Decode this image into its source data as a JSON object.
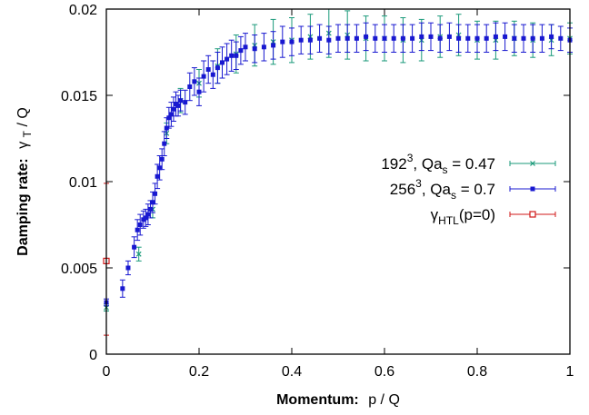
{
  "chart_data": {
    "type": "scatter",
    "title": "",
    "xlabel_bold": "Momentum:",
    "xlabel_rest": "p / Q",
    "ylabel_bold": "Damping rate:",
    "ylabel_rest": "γT / Q",
    "xlim": [
      0,
      1
    ],
    "ylim": [
      0,
      0.02
    ],
    "xticks": [
      0,
      0.2,
      0.4,
      0.6,
      0.8,
      1
    ],
    "xtick_labels": [
      "0",
      "0.2",
      "0.4",
      "0.6",
      "0.8",
      "1"
    ],
    "yticks": [
      0,
      0.005,
      0.01,
      0.015,
      0.02
    ],
    "ytick_labels": [
      "0",
      "0.005",
      "0.01",
      "0.015",
      "0.02"
    ],
    "grid": false,
    "legend_position": "center-right",
    "series": [
      {
        "name": "192³, Qa_s = 0.47",
        "legend_parts": [
          "192",
          "3",
          ", Qa",
          "s",
          " = 0.47"
        ],
        "color": "#1a9a7a",
        "marker": "x",
        "x": [
          0.0,
          0.07,
          0.1,
          0.13,
          0.16,
          0.2,
          0.24,
          0.28,
          0.32,
          0.36,
          0.4,
          0.44,
          0.48,
          0.52,
          0.56,
          0.6,
          0.64,
          0.68,
          0.72,
          0.76,
          0.8,
          0.84,
          0.88,
          0.92,
          0.96,
          1.0
        ],
        "y": [
          0.0027,
          0.0058,
          0.0084,
          0.0128,
          0.0147,
          0.0157,
          0.0167,
          0.0174,
          0.0179,
          0.0181,
          0.0182,
          0.0184,
          0.0186,
          0.0185,
          0.0183,
          0.0183,
          0.0182,
          0.0182,
          0.0184,
          0.0185,
          0.0182,
          0.0182,
          0.0183,
          0.0182,
          0.0182,
          0.0183
        ],
        "err": [
          0.0002,
          0.0004,
          0.0005,
          0.0006,
          0.0007,
          0.0008,
          0.001,
          0.0011,
          0.0012,
          0.0013,
          0.0013,
          0.0013,
          0.0014,
          0.0014,
          0.0013,
          0.0013,
          0.0013,
          0.0012,
          0.0012,
          0.0012,
          0.0011,
          0.0011,
          0.001,
          0.001,
          0.0009,
          0.0009
        ]
      },
      {
        "name": "256³, Qa_s = 0.7",
        "legend_parts": [
          "256",
          "3",
          ", Qa",
          "s",
          " = 0.7"
        ],
        "color": "#1818d0",
        "marker": "square-filled",
        "x": [
          0.0,
          0.035,
          0.047,
          0.06,
          0.067,
          0.073,
          0.08,
          0.085,
          0.09,
          0.095,
          0.1,
          0.105,
          0.11,
          0.115,
          0.12,
          0.125,
          0.13,
          0.135,
          0.14,
          0.145,
          0.15,
          0.155,
          0.16,
          0.17,
          0.18,
          0.19,
          0.2,
          0.21,
          0.22,
          0.23,
          0.24,
          0.25,
          0.26,
          0.27,
          0.28,
          0.29,
          0.3,
          0.32,
          0.34,
          0.36,
          0.38,
          0.4,
          0.42,
          0.44,
          0.46,
          0.48,
          0.5,
          0.52,
          0.54,
          0.56,
          0.58,
          0.6,
          0.62,
          0.64,
          0.66,
          0.68,
          0.7,
          0.72,
          0.74,
          0.76,
          0.78,
          0.8,
          0.82,
          0.84,
          0.86,
          0.88,
          0.9,
          0.92,
          0.94,
          0.96,
          0.98,
          1.0
        ],
        "y": [
          0.003,
          0.0038,
          0.005,
          0.0062,
          0.0072,
          0.0075,
          0.0078,
          0.0079,
          0.0081,
          0.0084,
          0.0088,
          0.0093,
          0.0103,
          0.0108,
          0.0113,
          0.0122,
          0.0131,
          0.0137,
          0.0139,
          0.0142,
          0.0145,
          0.0144,
          0.0147,
          0.0146,
          0.0155,
          0.0158,
          0.0152,
          0.0161,
          0.0165,
          0.0162,
          0.0166,
          0.0169,
          0.0171,
          0.0173,
          0.0173,
          0.0176,
          0.0178,
          0.0177,
          0.0178,
          0.0179,
          0.0181,
          0.0181,
          0.0182,
          0.0182,
          0.0183,
          0.0182,
          0.0183,
          0.0183,
          0.0183,
          0.0184,
          0.0183,
          0.0183,
          0.0183,
          0.0183,
          0.0183,
          0.0184,
          0.0184,
          0.0183,
          0.0184,
          0.0183,
          0.0183,
          0.0183,
          0.0183,
          0.0184,
          0.0184,
          0.0183,
          0.0183,
          0.0183,
          0.0183,
          0.0184,
          0.0183,
          0.0182
        ],
        "err": [
          0.0002,
          0.0005,
          0.0004,
          0.0006,
          0.0006,
          0.0006,
          0.0005,
          0.0005,
          0.0006,
          0.0005,
          0.0006,
          0.0006,
          0.0007,
          0.0007,
          0.0006,
          0.0007,
          0.0006,
          0.0006,
          0.0007,
          0.0007,
          0.0007,
          0.0006,
          0.0006,
          0.0007,
          0.0008,
          0.0008,
          0.0008,
          0.0009,
          0.0008,
          0.0008,
          0.0009,
          0.0009,
          0.0009,
          0.0009,
          0.0008,
          0.0008,
          0.0008,
          0.0008,
          0.0008,
          0.0008,
          0.0009,
          0.0008,
          0.0008,
          0.0008,
          0.0008,
          0.0008,
          0.0008,
          0.0008,
          0.0008,
          0.0008,
          0.0008,
          0.0008,
          0.0008,
          0.0008,
          0.0008,
          0.0008,
          0.0008,
          0.0008,
          0.0008,
          0.0008,
          0.0008,
          0.0008,
          0.0008,
          0.0008,
          0.0008,
          0.0008,
          0.0008,
          0.0008,
          0.0008,
          0.0007,
          0.0007,
          0.0007
        ]
      },
      {
        "name": "γHTL(p=0)",
        "legend_parts": [
          "γ",
          "HTL",
          "(p=0)"
        ],
        "color": "#d01818",
        "marker": "square-open",
        "x": [
          0.0
        ],
        "y": [
          0.0054
        ],
        "err_low": [
          0.0011
        ],
        "err_high": [
          0.0099
        ]
      }
    ]
  }
}
